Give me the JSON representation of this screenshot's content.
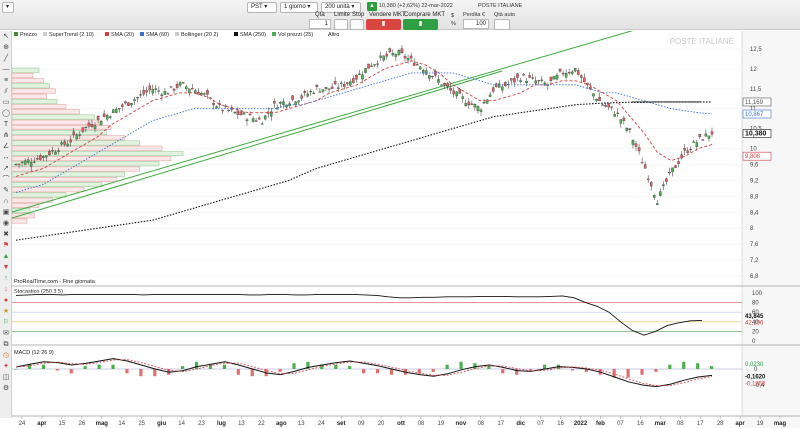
{
  "toolbar": {
    "ticker": "PST",
    "timeframe": "1 giorno",
    "units": "200 unità",
    "qty_label": "Qtà",
    "qty_value": "1",
    "limit_label": "Limite",
    "stop_label": "Stop",
    "sell_label": "Vendere MKT",
    "buy_label": "Comprare MKT",
    "quote": "10,380 (+2,62%) 22-mar-2022",
    "instrument": "POSTE ITALIANE",
    "loss_label": "Perdita €",
    "qty_auto_label": "Qtà auto",
    "auto_value": "100",
    "dollar_label": "$",
    "percent_label": "%"
  },
  "chart": {
    "watermark": "POSTE ITALIANE",
    "legend": [
      {
        "label": "Prezzo",
        "color": "#4a8a3a"
      },
      {
        "label": "SuperTrend (2 10)",
        "color": "#cccccc"
      },
      {
        "label": "SMA (20)",
        "color": "#d04040"
      },
      {
        "label": "SMA (60)",
        "color": "#3a6fd0"
      },
      {
        "label": "Bollinger (20 2)",
        "color": "#cccccc"
      },
      {
        "label": "SMA (250)",
        "color": "#111111"
      },
      {
        "label": "Vol prezzi (25)",
        "color": "#4caf50"
      },
      {
        "label": "Altro",
        "color": ""
      }
    ],
    "y_ticks": [
      "12,5",
      "12",
      "11,5",
      "11",
      "10,5",
      "10",
      "9,6",
      "9,2",
      "8,8",
      "8,4",
      "8",
      "7,6",
      "7,2",
      "6,8"
    ],
    "price_tags": [
      {
        "label": "11,169",
        "color": "#555555"
      },
      {
        "label": "10,867",
        "color": "#3a6fd0"
      },
      {
        "label": "10,380",
        "color": "#111111"
      },
      {
        "label": "9,808",
        "color": "#d04040"
      }
    ],
    "footer": "ProRealTime.com - Fine giornata"
  },
  "stochastic": {
    "label": "Stocastico (250 3 5)",
    "y_ticks": [
      "100",
      "80",
      "60",
      "40",
      "20",
      "0"
    ],
    "tags": [
      "43,845",
      "42,196"
    ]
  },
  "macd": {
    "label": "MACD (12 26 9)",
    "y_ticks": [
      "0",
      "-0,4"
    ],
    "tags": [
      "0,0230",
      "-0,1620",
      "-0,1850"
    ]
  },
  "x_axis": {
    "labels": [
      "24",
      "apr",
      "15",
      "26",
      "mag",
      "14",
      "25",
      "giu",
      "14",
      "23",
      "lug",
      "13",
      "22",
      "ago",
      "13",
      "24",
      "set",
      "09",
      "20",
      "ott",
      "08",
      "19",
      "nov",
      "08",
      "17",
      "dic",
      "07",
      "16",
      "2022",
      "feb",
      "07",
      "16",
      "mar",
      "08",
      "17",
      "28",
      "apr",
      "19",
      "mag"
    ],
    "bold": [
      "apr",
      "mag",
      "giu",
      "lug",
      "ago",
      "set",
      "ott",
      "nov",
      "dic",
      "2022",
      "feb",
      "mar"
    ]
  },
  "chart_data": {
    "type": "line",
    "series": [
      {
        "name": "Prezzo",
        "values": [
          9.6,
          9.7,
          9.8,
          10.0,
          10.2,
          10.5,
          10.7,
          10.9,
          11.1,
          11.3,
          11.5,
          11.4,
          11.6,
          11.5,
          11.3,
          11.0,
          10.9,
          10.8,
          10.7,
          11.1,
          11.2,
          11.3,
          11.5,
          11.5,
          11.6,
          11.8,
          12.1,
          12.3,
          12.4,
          12.2,
          12.0,
          11.7,
          11.4,
          11.2,
          11.0,
          11.5,
          11.6,
          11.8,
          11.7,
          11.6,
          11.9,
          12.0,
          11.5,
          11.1,
          10.9,
          10.4,
          9.6,
          8.7,
          9.4,
          9.9,
          10.2,
          10.4
        ]
      },
      {
        "name": "SMA (20)",
        "values": [
          9.3,
          9.4,
          9.5,
          9.7,
          9.9,
          10.1,
          10.3,
          10.6,
          10.8,
          11.0,
          11.2,
          11.3,
          11.4,
          11.4,
          11.3,
          11.1,
          11.0,
          10.9,
          10.9,
          10.9,
          11.0,
          11.1,
          11.2,
          11.4,
          11.5,
          11.6,
          11.8,
          12.0,
          12.1,
          12.2,
          12.1,
          11.9,
          11.6,
          11.4,
          11.2,
          11.2,
          11.3,
          11.4,
          11.6,
          11.6,
          11.7,
          11.7,
          11.6,
          11.4,
          11.2,
          10.8,
          10.4,
          9.9,
          9.7,
          9.8,
          10.0,
          10.1
        ]
      },
      {
        "name": "SMA (60)",
        "values": [
          8.9,
          9.0,
          9.1,
          9.3,
          9.5,
          9.7,
          9.9,
          10.1,
          10.3,
          10.5,
          10.7,
          10.8,
          10.9,
          11.0,
          11.0,
          11.0,
          11.0,
          11.0,
          11.0,
          11.0,
          11.1,
          11.1,
          11.2,
          11.3,
          11.4,
          11.5,
          11.6,
          11.7,
          11.8,
          11.9,
          11.9,
          11.9,
          11.9,
          11.8,
          11.7,
          11.6,
          11.6,
          11.6,
          11.6,
          11.6,
          11.6,
          11.6,
          11.5,
          11.4,
          11.4,
          11.3,
          11.2,
          11.1,
          11.0,
          10.95,
          10.9,
          10.87
        ]
      },
      {
        "name": "SMA (250)",
        "values": [
          7.7,
          7.75,
          7.8,
          7.85,
          7.9,
          7.95,
          8.0,
          8.05,
          8.1,
          8.15,
          8.2,
          8.3,
          8.4,
          8.5,
          8.6,
          8.7,
          8.8,
          8.9,
          9.0,
          9.1,
          9.2,
          9.35,
          9.5,
          9.6,
          9.7,
          9.8,
          9.9,
          10.0,
          10.1,
          10.2,
          10.3,
          10.4,
          10.5,
          10.6,
          10.7,
          10.8,
          10.85,
          10.9,
          10.95,
          11.0,
          11.05,
          11.1,
          11.12,
          11.14,
          11.15,
          11.16,
          11.16,
          11.17,
          11.17,
          11.17,
          11.17,
          11.17
        ]
      }
    ],
    "ylim": [
      6.8,
      12.7
    ]
  }
}
